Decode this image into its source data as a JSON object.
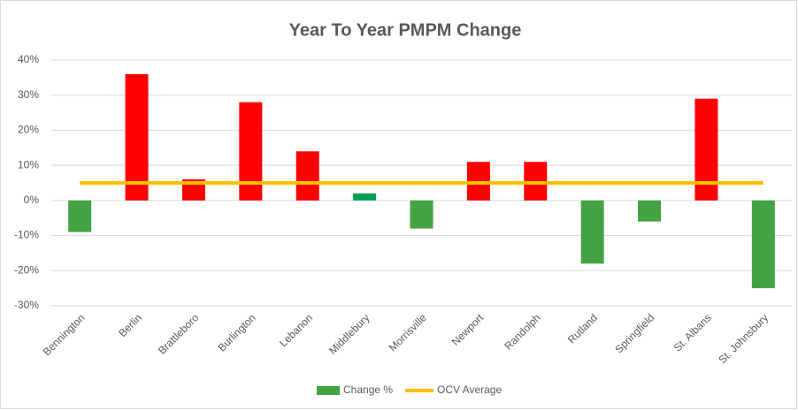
{
  "chart_data": {
    "type": "bar",
    "title": "Year To Year PMPM Change",
    "categories": [
      "Bennington",
      "Berlin",
      "Brattleboro",
      "Burlington",
      "Lebanon",
      "Middlebury",
      "Morrisville",
      "Newport",
      "Randolph",
      "Rutland",
      "Springfield",
      "St. Albans",
      "St. Johnsbury"
    ],
    "series": [
      {
        "name": "Change %",
        "type": "bar",
        "color": "#43a343",
        "values": [
          -9,
          36,
          6,
          28,
          14,
          2,
          -8,
          11,
          11,
          -18,
          -6,
          29,
          -25
        ],
        "colors": [
          "#43a343",
          "#ff0000",
          "#ff0000",
          "#ff0000",
          "#ff0000",
          "#00a050",
          "#43a343",
          "#ff0000",
          "#ff0000",
          "#43a343",
          "#43a343",
          "#ff0000",
          "#43a343"
        ]
      },
      {
        "name": "OCV Average",
        "type": "line",
        "color": "#ffc000",
        "values": [
          5,
          5,
          5,
          5,
          5,
          5,
          5,
          5,
          5,
          5,
          5,
          5,
          5
        ]
      }
    ],
    "ylim": [
      -30,
      40
    ],
    "yticks": [
      {
        "value": -30,
        "label": "-30%"
      },
      {
        "value": -20,
        "label": "-20%"
      },
      {
        "value": -10,
        "label": "-10%"
      },
      {
        "value": 0,
        "label": "0%"
      },
      {
        "value": 10,
        "label": "10%"
      },
      {
        "value": 20,
        "label": "20%"
      },
      {
        "value": 30,
        "label": "30%"
      },
      {
        "value": 40,
        "label": "40%"
      }
    ],
    "grid": true,
    "legend": "bottom"
  }
}
